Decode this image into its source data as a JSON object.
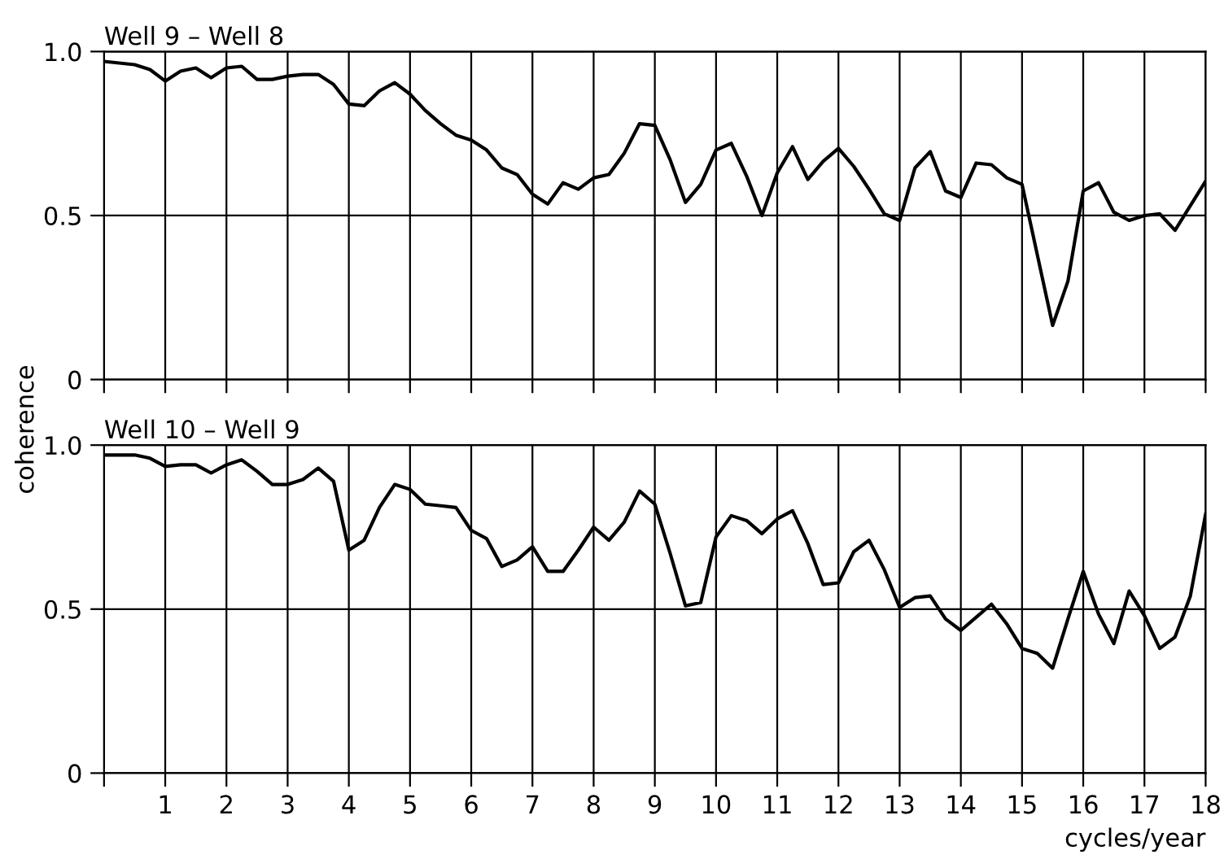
{
  "chart_data": [
    {
      "type": "line",
      "title": "Well 9 – Well 8",
      "ylabel": "coherence",
      "tick_labels": "y",
      "grid": true,
      "xlim": [
        0,
        18
      ],
      "ylim": [
        0,
        1
      ],
      "yticks": [
        0,
        0.5,
        {
          "value": 1,
          "label": "1.0"
        }
      ],
      "xticks": [
        {
          "value": 0,
          "label": null
        },
        1,
        2,
        3,
        4,
        5,
        6,
        7,
        8,
        9,
        10,
        11,
        12,
        13,
        14,
        15,
        16,
        17,
        18
      ],
      "series": [
        {
          "color": "#000000",
          "x": [
            0,
            0.25,
            0.5,
            0.75,
            1,
            1.25,
            1.5,
            1.75,
            2,
            2.25,
            2.5,
            2.75,
            3,
            3.25,
            3.5,
            3.75,
            4,
            4.25,
            4.5,
            4.75,
            5,
            5.25,
            5.5,
            5.75,
            6,
            6.25,
            6.5,
            6.75,
            7,
            7.25,
            7.5,
            7.75,
            8,
            8.25,
            8.5,
            8.75,
            9,
            9.25,
            9.5,
            9.75,
            10,
            10.25,
            10.5,
            10.75,
            11,
            11.25,
            11.5,
            11.75,
            12,
            12.25,
            12.5,
            12.75,
            13,
            13.25,
            13.5,
            13.75,
            14,
            14.25,
            14.5,
            14.75,
            15,
            15.25,
            15.5,
            15.75,
            16,
            16.25,
            16.5,
            16.75,
            17,
            17.25,
            17.5,
            17.75,
            18
          ],
          "values": [
            0.97,
            0.965,
            0.96,
            0.945,
            0.91,
            0.94,
            0.95,
            0.92,
            0.95,
            0.955,
            0.915,
            0.915,
            0.925,
            0.93,
            0.93,
            0.9,
            0.84,
            0.835,
            0.88,
            0.905,
            0.87,
            0.82,
            0.78,
            0.745,
            0.73,
            0.7,
            0.645,
            0.625,
            0.565,
            0.535,
            0.6,
            0.58,
            0.615,
            0.625,
            0.69,
            0.78,
            0.775,
            0.67,
            0.54,
            0.595,
            0.7,
            0.72,
            0.62,
            0.5,
            0.63,
            0.71,
            0.61,
            0.665,
            0.705,
            0.65,
            0.58,
            0.505,
            0.485,
            0.645,
            0.695,
            0.575,
            0.555,
            0.66,
            0.655,
            0.615,
            0.595,
            0.38,
            0.165,
            0.3,
            0.575,
            0.6,
            0.51,
            0.485,
            0.5,
            0.505,
            0.455,
            0.53,
            0.605
          ]
        }
      ]
    },
    {
      "type": "line",
      "title": "Well 10 – Well 9",
      "xlabel": "cycles/year",
      "grid": true,
      "xlim": [
        0,
        18
      ],
      "ylim": [
        0,
        1
      ],
      "yticks": [
        0,
        0.5,
        {
          "value": 1,
          "label": "1.0"
        }
      ],
      "xticks": [
        {
          "value": 0,
          "label": null
        },
        1,
        2,
        3,
        4,
        5,
        6,
        7,
        8,
        9,
        10,
        11,
        12,
        13,
        14,
        15,
        16,
        17,
        18
      ],
      "series": [
        {
          "color": "#000000",
          "x": [
            0,
            0.25,
            0.5,
            0.75,
            1,
            1.25,
            1.5,
            1.75,
            2,
            2.25,
            2.5,
            2.75,
            3,
            3.25,
            3.5,
            3.75,
            4,
            4.25,
            4.5,
            4.75,
            5,
            5.25,
            5.5,
            5.75,
            6,
            6.25,
            6.5,
            6.75,
            7,
            7.25,
            7.5,
            7.75,
            8,
            8.25,
            8.5,
            8.75,
            9,
            9.25,
            9.5,
            9.75,
            10,
            10.25,
            10.5,
            10.75,
            11,
            11.25,
            11.5,
            11.75,
            12,
            12.25,
            12.5,
            12.75,
            13,
            13.25,
            13.5,
            13.75,
            14,
            14.25,
            14.5,
            14.75,
            15,
            15.25,
            15.5,
            15.75,
            16,
            16.25,
            16.5,
            16.75,
            17,
            17.25,
            17.5,
            17.75,
            18
          ],
          "values": [
            0.97,
            0.97,
            0.97,
            0.96,
            0.935,
            0.94,
            0.94,
            0.915,
            0.94,
            0.955,
            0.92,
            0.88,
            0.88,
            0.895,
            0.93,
            0.89,
            0.68,
            0.71,
            0.81,
            0.88,
            0.865,
            0.82,
            0.815,
            0.81,
            0.74,
            0.715,
            0.63,
            0.65,
            0.69,
            0.615,
            0.615,
            0.68,
            0.75,
            0.71,
            0.765,
            0.86,
            0.82,
            0.67,
            0.51,
            0.52,
            0.72,
            0.785,
            0.77,
            0.73,
            0.775,
            0.8,
            0.7,
            0.575,
            0.58,
            0.675,
            0.71,
            0.62,
            0.505,
            0.535,
            0.54,
            0.47,
            0.435,
            0.475,
            0.515,
            0.455,
            0.38,
            0.365,
            0.32,
            0.47,
            0.615,
            0.485,
            0.395,
            0.555,
            0.48,
            0.38,
            0.415,
            0.54,
            0.79
          ]
        }
      ]
    }
  ]
}
